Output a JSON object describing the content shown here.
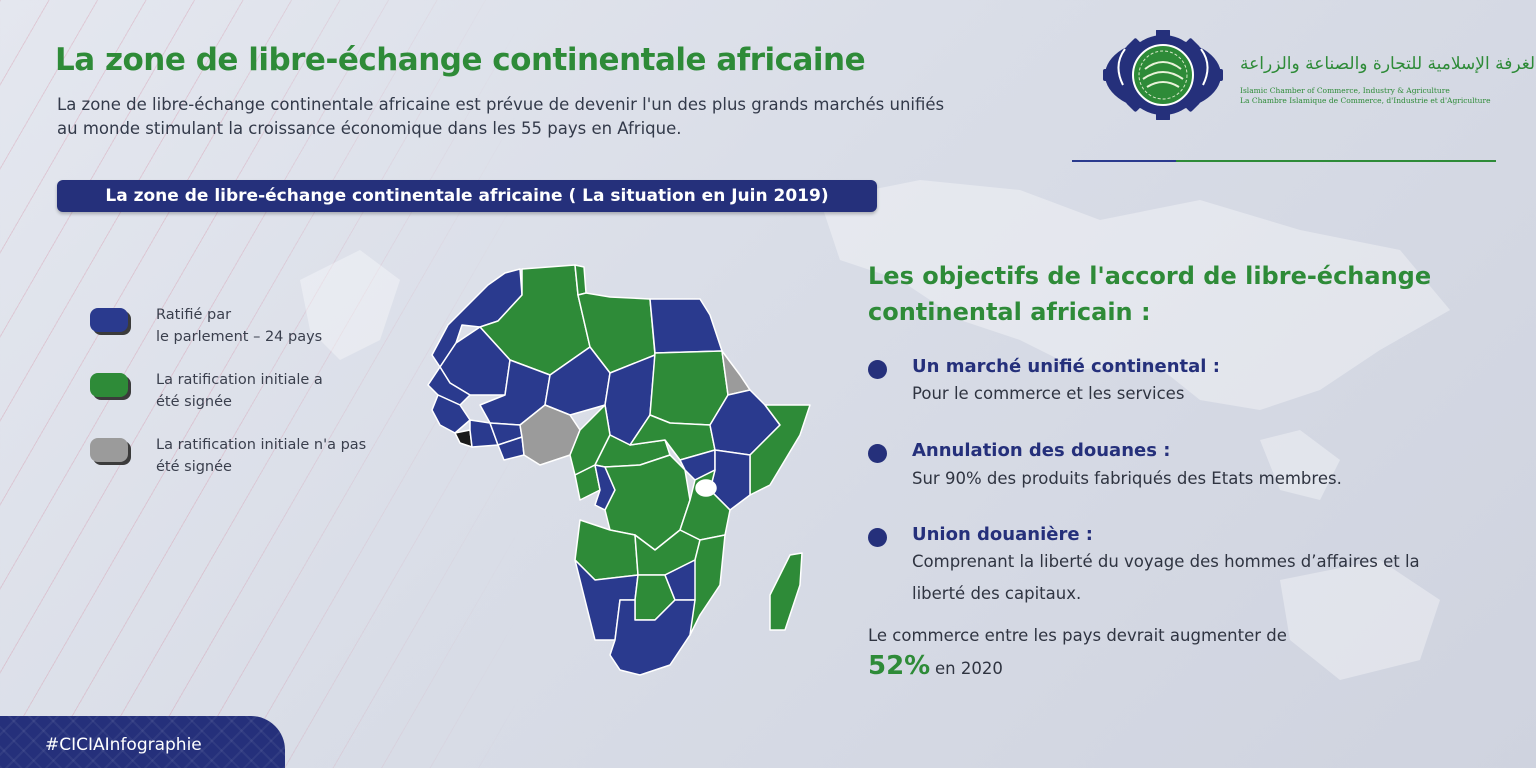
{
  "header": {
    "title": "La zone de libre-échange continentale africaine",
    "subtitle_line1": "La zone de libre-échange continentale africaine est prévue de devenir l'un des plus grands marchés unifiés",
    "subtitle_line2": "au monde stimulant la croissance économique dans les 55 pays en Afrique."
  },
  "logo": {
    "arabic": "الغرفة الإسلامية للتجارة والصناعة والزراعة",
    "english": "Islamic Chamber of Commerce, Industry & Agriculture",
    "french": "La Chambre Islamique de Commerce, d'Industrie et d'Agriculture"
  },
  "banner": "La zone de libre-échange continentale africaine ( La situation en Juin 2019)",
  "colors": {
    "ratified": "#2a3a8e",
    "signed": "#2e8b38",
    "not_signed": "#9b9b9b",
    "other": "#1a1a1a"
  },
  "legend": [
    {
      "line1": "Ratifié par",
      "line2": "le parlement – 24 pays",
      "color_key": "ratified"
    },
    {
      "line1": "La ratification initiale a",
      "line2": "été signée",
      "color_key": "signed"
    },
    {
      "line1": "La ratification initiale n'a pas",
      "line2": "été signée",
      "color_key": "not_signed"
    }
  ],
  "objectives": {
    "title_line1": "Les objectifs de l'accord de libre-échange",
    "title_line2": "continental africain :",
    "items": [
      {
        "heading": "Un marché unifié continental :",
        "body": "Pour le commerce et les services"
      },
      {
        "heading": "Annulation des douanes :",
        "body": "Sur 90% des produits fabriqués des Etats membres."
      },
      {
        "heading": "Union douanière :",
        "body_line1": "Comprenant la liberté du voyage des hommes d’affaires et la",
        "body_line2": "liberté des capitaux."
      }
    ],
    "note": "Le commerce entre les pays devrait augmenter de",
    "percentage": "52%",
    "percentage_suffix": "en 2020"
  },
  "hashtag": "#CICIAInfographie"
}
